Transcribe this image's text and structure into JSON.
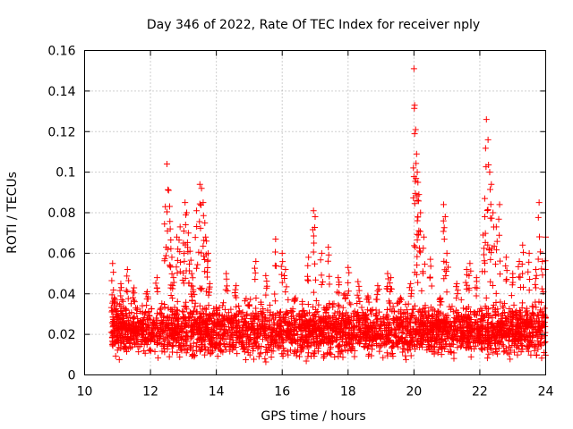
{
  "chart_data": {
    "type": "scatter",
    "title": "Day 346 of 2022, Rate Of TEC Index for receiver nply",
    "xlabel": "GPS time / hours",
    "ylabel": "ROTI / TECUs",
    "xlim": [
      10,
      24
    ],
    "ylim": [
      0,
      0.16
    ],
    "xticks": [
      10,
      12,
      14,
      16,
      18,
      20,
      22,
      24
    ],
    "yticks": [
      0,
      0.02,
      0.04,
      0.06,
      0.08,
      0.1,
      0.12,
      0.14,
      0.16
    ],
    "xtick_labels": [
      "10",
      "12",
      "14",
      "16",
      "18",
      "20",
      "22",
      "24"
    ],
    "ytick_labels": [
      "0",
      "0.02",
      "0.04",
      "0.06",
      "0.08",
      "0.1",
      "0.12",
      "0.14",
      "0.16"
    ],
    "grid": true,
    "marker": "+",
    "color": "#ff0000",
    "series": [
      {
        "name": "ROTI",
        "x": [
          10.85,
          10.9,
          11.0,
          11.1,
          11.3,
          11.5,
          11.9,
          12.2,
          12.45,
          12.5,
          12.55,
          12.6,
          12.65,
          12.7,
          12.8,
          12.9,
          13.0,
          13.05,
          13.1,
          13.15,
          13.2,
          13.25,
          13.3,
          13.4,
          13.5,
          13.55,
          13.6,
          13.65,
          13.7,
          13.75,
          13.8,
          14.0,
          14.3,
          14.6,
          15.0,
          15.2,
          15.5,
          15.8,
          16.0,
          16.1,
          16.4,
          16.8,
          16.95,
          17.0,
          17.2,
          17.4,
          17.7,
          17.9,
          18.0,
          18.3,
          18.6,
          18.9,
          19.2,
          19.3,
          19.6,
          19.9,
          20.0,
          20.02,
          20.05,
          20.08,
          20.1,
          20.12,
          20.15,
          20.2,
          20.3,
          20.5,
          20.8,
          20.9,
          20.95,
          21.0,
          21.3,
          21.6,
          21.7,
          21.9,
          22.1,
          22.15,
          22.2,
          22.25,
          22.3,
          22.35,
          22.4,
          22.5,
          22.6,
          22.8,
          23.0,
          23.2,
          23.3,
          23.5,
          23.7,
          23.8,
          23.9,
          24.0
        ],
        "y": [
          0.055,
          0.038,
          0.028,
          0.045,
          0.052,
          0.043,
          0.041,
          0.048,
          0.083,
          0.104,
          0.091,
          0.072,
          0.058,
          0.048,
          0.068,
          0.073,
          0.065,
          0.085,
          0.08,
          0.07,
          0.061,
          0.05,
          0.042,
          0.081,
          0.094,
          0.092,
          0.085,
          0.075,
          0.066,
          0.06,
          0.045,
          0.03,
          0.05,
          0.044,
          0.034,
          0.056,
          0.049,
          0.067,
          0.06,
          0.052,
          0.038,
          0.058,
          0.081,
          0.078,
          0.06,
          0.063,
          0.048,
          0.04,
          0.053,
          0.046,
          0.039,
          0.044,
          0.05,
          0.048,
          0.038,
          0.045,
          0.151,
          0.133,
          0.121,
          0.109,
          0.1,
          0.095,
          0.089,
          0.08,
          0.068,
          0.057,
          0.038,
          0.084,
          0.078,
          0.06,
          0.045,
          0.052,
          0.055,
          0.048,
          0.069,
          0.087,
          0.126,
          0.116,
          0.1,
          0.094,
          0.08,
          0.073,
          0.084,
          0.058,
          0.05,
          0.056,
          0.064,
          0.06,
          0.052,
          0.085,
          0.056,
          0.068
        ],
        "background_band": {
          "x_range": [
            10.8,
            24.0
          ],
          "typical_y_range": [
            0.005,
            0.035
          ],
          "median_y": 0.015
        }
      }
    ]
  }
}
